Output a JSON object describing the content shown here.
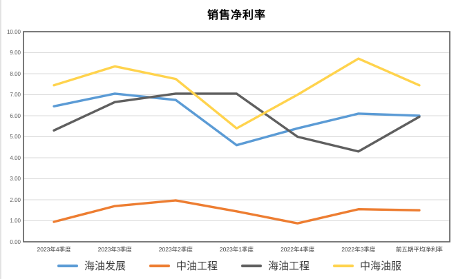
{
  "title": "销售净利率",
  "chart_data": {
    "type": "line",
    "title": "销售净利率",
    "categories": [
      "2023年4季度",
      "2023年3季度",
      "2023年2季度",
      "2023年1季度",
      "2022年4季度",
      "2022年3季度",
      "前五期平均净利率"
    ],
    "series": [
      {
        "name": "海油发展",
        "color": "#5B9BD5",
        "values": [
          6.45,
          7.05,
          6.75,
          4.6,
          5.4,
          6.1,
          6.0
        ]
      },
      {
        "name": "中油工程",
        "color": "#ED7D31",
        "values": [
          0.95,
          1.7,
          1.97,
          1.45,
          0.88,
          1.55,
          1.5
        ]
      },
      {
        "name": "海油工程",
        "color": "#5F5F5F",
        "values": [
          5.3,
          6.65,
          7.05,
          7.05,
          5.0,
          4.3,
          5.95
        ]
      },
      {
        "name": "中海油服",
        "color": "#FFD34D",
        "values": [
          7.45,
          8.35,
          7.75,
          5.4,
          7.0,
          8.72,
          7.45
        ]
      }
    ],
    "ylim": [
      0,
      10
    ],
    "ytick_labels": [
      "0.00",
      "1.00",
      "2.00",
      "3.00",
      "4.00",
      "5.00",
      "6.00",
      "7.00",
      "8.00",
      "9.00",
      "10.00"
    ],
    "grid": true,
    "legend_position": "bottom",
    "plot_border_color": "#595959",
    "gridline_color": "#D9D9D9"
  }
}
